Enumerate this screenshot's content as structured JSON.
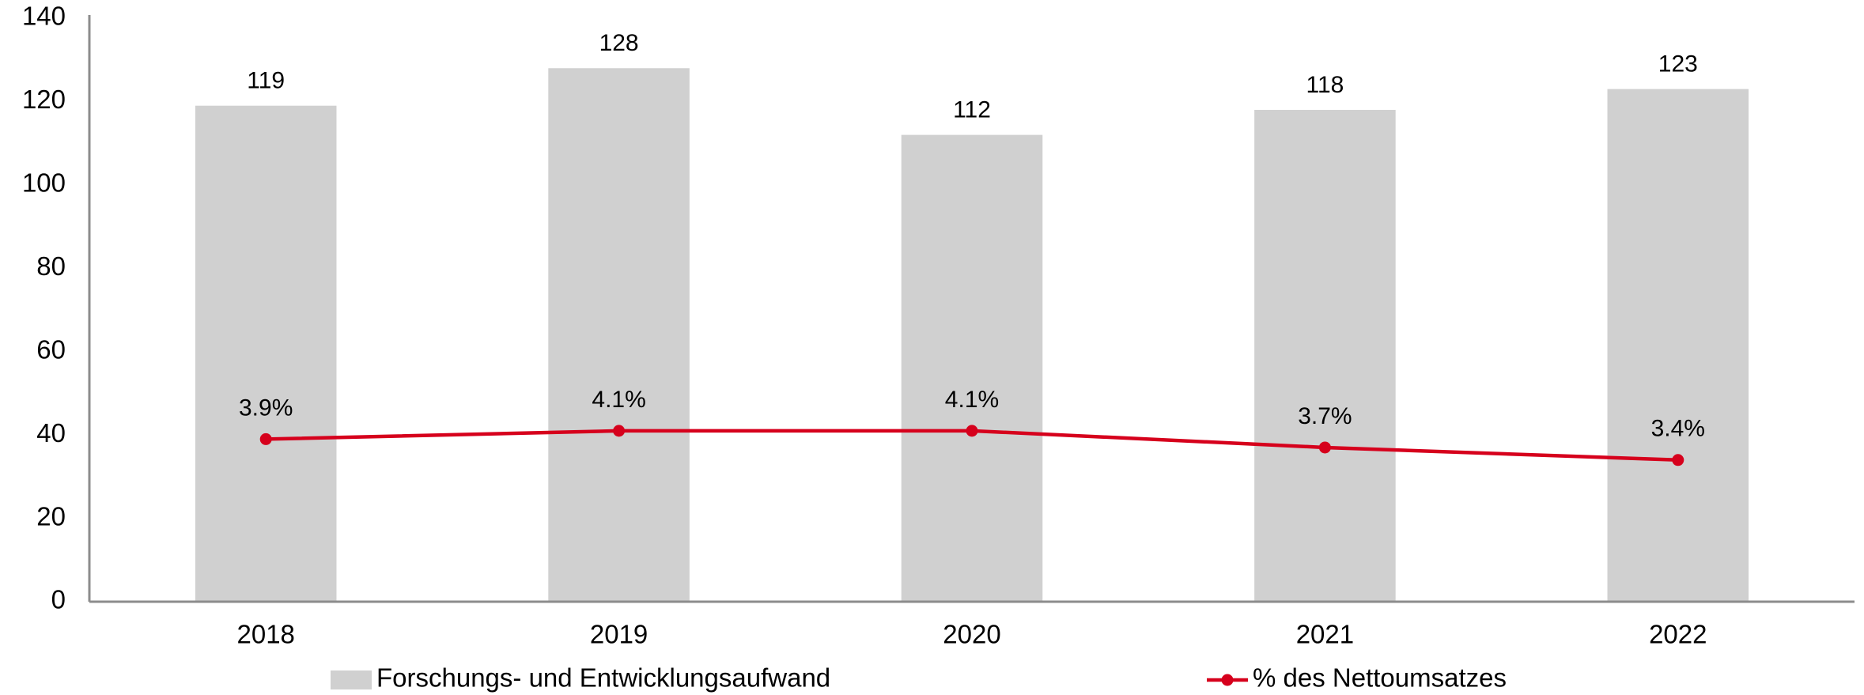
{
  "chart_data": {
    "type": "bar",
    "categories": [
      "2018",
      "2019",
      "2020",
      "2021",
      "2022"
    ],
    "series": [
      {
        "name": "Forschungs- und Entwicklungsaufwand",
        "type": "bar",
        "color": "#d0d0d0",
        "values": [
          119,
          128,
          112,
          118,
          123
        ]
      },
      {
        "name": "% des Nettoumsatzes",
        "type": "line",
        "axis": "y2",
        "color": "#d6001c",
        "values": [
          3.9,
          4.1,
          4.1,
          3.7,
          3.4
        ],
        "value_labels": [
          "3.9%",
          "4.1%",
          "4.1%",
          "3.7%",
          "3.4%"
        ]
      }
    ],
    "ylim": [
      0,
      140
    ],
    "yticks": [
      0,
      20,
      40,
      60,
      80,
      100,
      120,
      140
    ],
    "y2lim": [
      0,
      14
    ],
    "grid": false,
    "legend": "bottom"
  }
}
